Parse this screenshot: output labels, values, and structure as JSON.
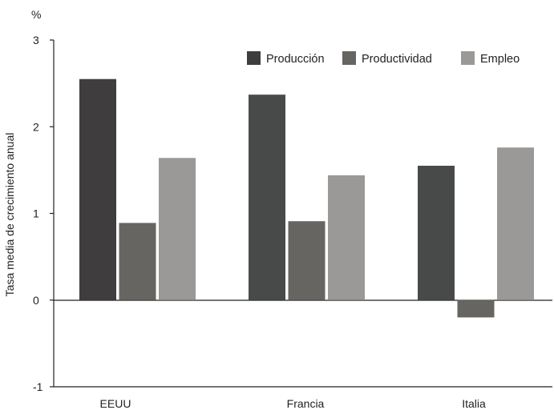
{
  "chart_data": {
    "type": "bar",
    "unit_label": "%",
    "ylabel": "Tasa media de crecimiento anual",
    "categories": [
      "EEUU",
      "Francia",
      "Italia"
    ],
    "series": [
      {
        "name": "Producción",
        "values": [
          2.55,
          2.37,
          1.55
        ],
        "colors": [
          "#3f3d3d",
          "#474a49",
          "#474a49"
        ]
      },
      {
        "name": "Productividad",
        "values": [
          0.89,
          0.91,
          -0.2
        ],
        "colors": [
          "#676562",
          "#676562",
          "#676562"
        ]
      },
      {
        "name": "Empleo",
        "values": [
          1.64,
          1.44,
          1.76
        ],
        "colors": [
          "#9a9997",
          "#9a9997",
          "#9a9997"
        ]
      }
    ],
    "legend_colors": [
      "#3f3d3d",
      "#676562",
      "#9a9997"
    ],
    "ylim": [
      -1,
      3
    ],
    "yticks": [
      -1,
      0,
      1,
      2,
      3
    ],
    "ytick_labels": [
      "-1",
      "0",
      "1",
      "2",
      "3"
    ],
    "legend_position": "top-right",
    "grid": false
  }
}
